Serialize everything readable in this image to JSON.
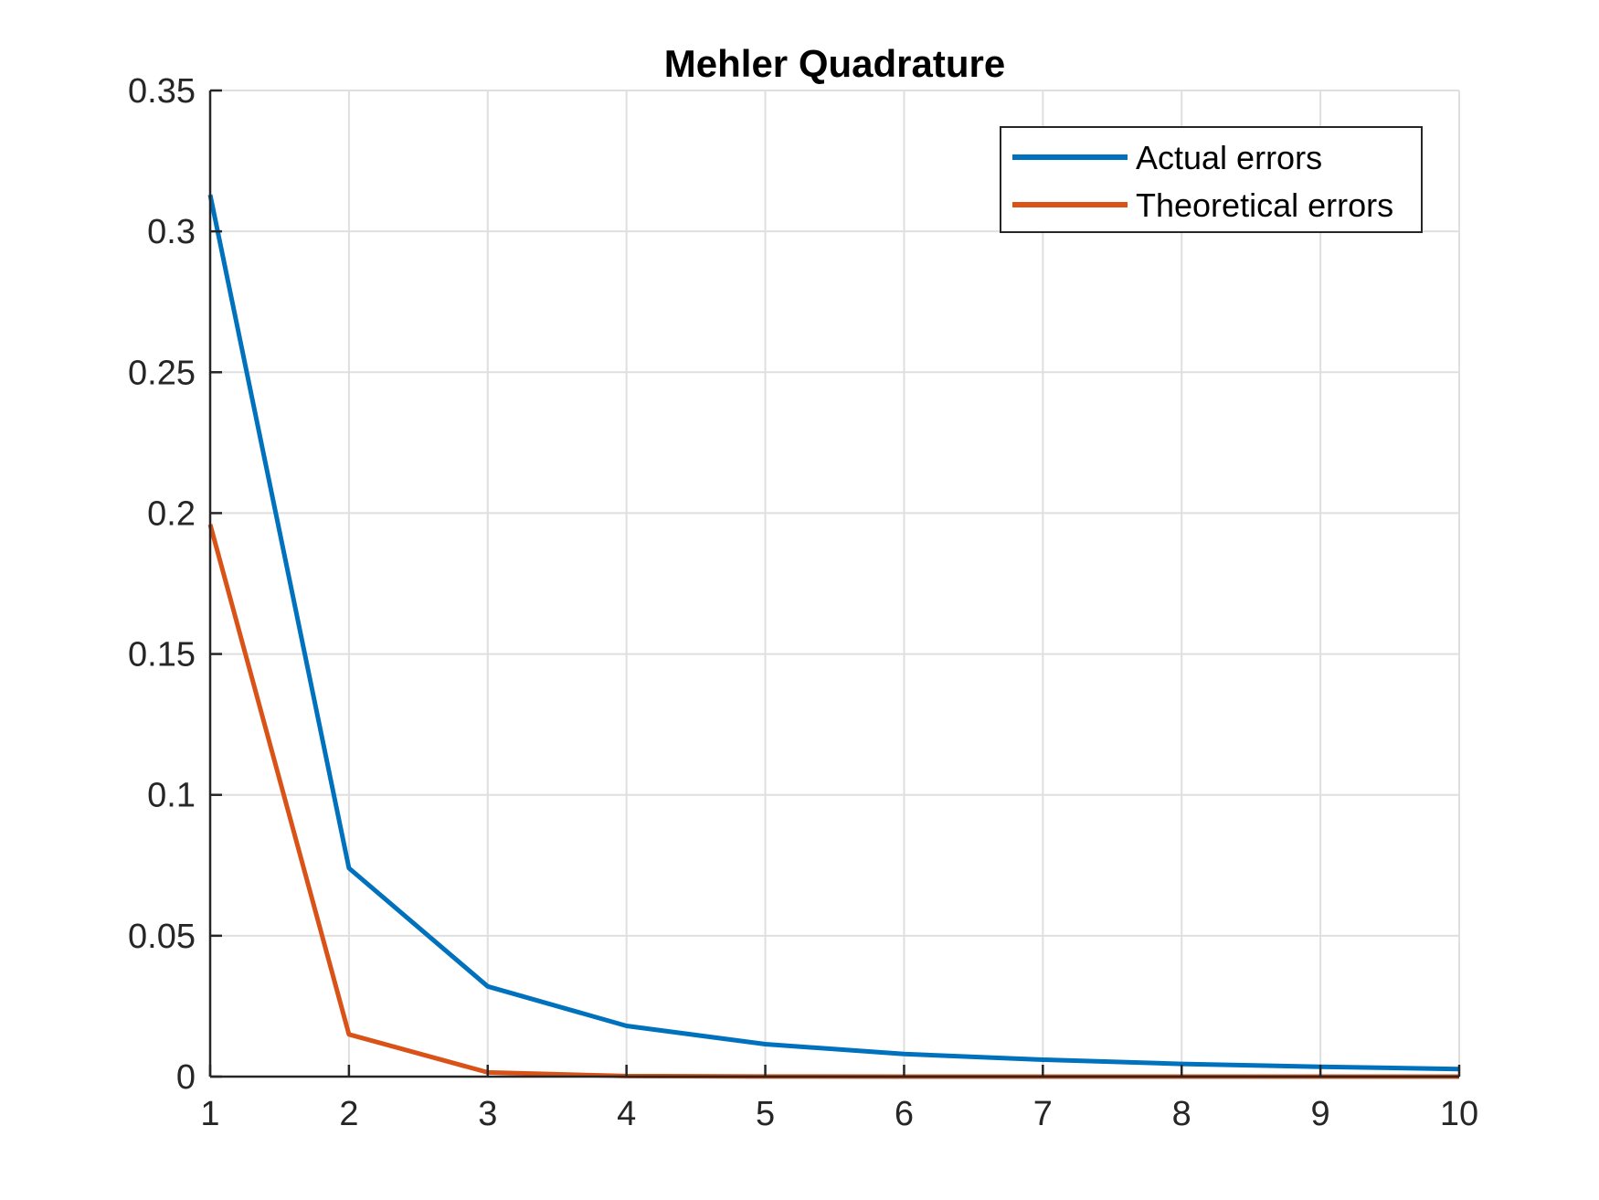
{
  "chart_data": {
    "type": "line",
    "title": "Mehler Quadrature",
    "xlabel": "",
    "ylabel": "",
    "x": [
      1,
      2,
      3,
      4,
      5,
      6,
      7,
      8,
      9,
      10
    ],
    "xlim": [
      1,
      10
    ],
    "ylim": [
      0,
      0.35
    ],
    "x_ticks": [
      "1",
      "2",
      "3",
      "4",
      "5",
      "6",
      "7",
      "8",
      "9",
      "10"
    ],
    "y_ticks": [
      "0",
      "0.05",
      "0.1",
      "0.15",
      "0.2",
      "0.25",
      "0.3",
      "0.35"
    ],
    "grid": true,
    "legend_position": "top-right",
    "series": [
      {
        "name": "Actual errors",
        "color": "#0072BD",
        "values": [
          0.313,
          0.074,
          0.032,
          0.018,
          0.0115,
          0.008,
          0.006,
          0.0045,
          0.0035,
          0.0027
        ]
      },
      {
        "name": "Theoretical errors",
        "color": "#D95319",
        "values": [
          0.196,
          0.015,
          0.0015,
          0.0002,
          2e-05,
          0.0,
          0.0,
          0.0,
          0.0,
          0.0
        ]
      }
    ]
  }
}
